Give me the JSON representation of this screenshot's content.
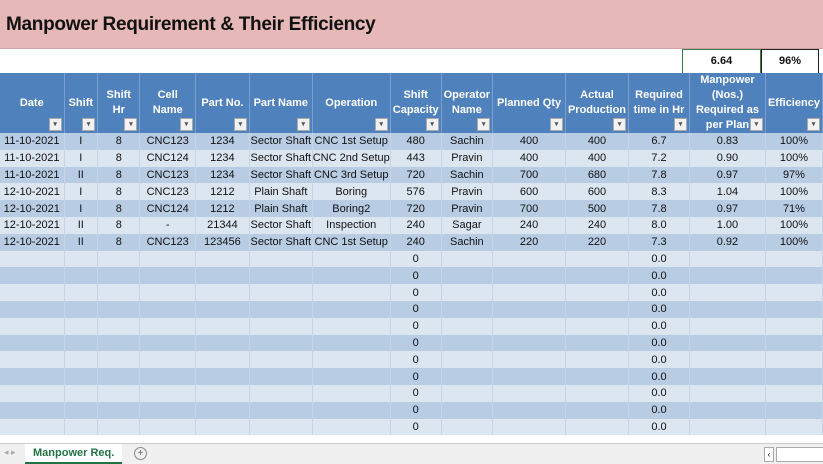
{
  "title": "Manpower Requirement & Their Efficiency",
  "totals": {
    "manpower": "6.64",
    "efficiency": "96%"
  },
  "columns": [
    "Date",
    "Shift",
    "Shift Hr",
    "Cell Name",
    "Part No.",
    "Part Name",
    "Operation",
    "Shift Capacity",
    "Operator Name",
    "Planned Qty",
    "Actual Production",
    "Required time in Hr",
    "Manpower (Nos.) Required as per Plan",
    "Efficiency"
  ],
  "rows": [
    [
      "11-10-2021",
      "I",
      "8",
      "CNC123",
      "1234",
      "Sector Shaft",
      "CNC 1st Setup",
      "480",
      "Sachin",
      "400",
      "400",
      "6.7",
      "0.83",
      "100%"
    ],
    [
      "11-10-2021",
      "I",
      "8",
      "CNC124",
      "1234",
      "Sector Shaft",
      "CNC 2nd Setup",
      "443",
      "Pravin",
      "400",
      "400",
      "7.2",
      "0.90",
      "100%"
    ],
    [
      "11-10-2021",
      "II",
      "8",
      "CNC123",
      "1234",
      "Sector Shaft",
      "CNC 3rd Setup",
      "720",
      "Sachin",
      "700",
      "680",
      "7.8",
      "0.97",
      "97%"
    ],
    [
      "12-10-2021",
      "I",
      "8",
      "CNC123",
      "1212",
      "Plain Shaft",
      "Boring",
      "576",
      "Pravin",
      "600",
      "600",
      "8.3",
      "1.04",
      "100%"
    ],
    [
      "12-10-2021",
      "I",
      "8",
      "CNC124",
      "1212",
      "Plain Shaft",
      "Boring2",
      "720",
      "Pravin",
      "700",
      "500",
      "7.8",
      "0.97",
      "71%"
    ],
    [
      "12-10-2021",
      "II",
      "8",
      "-",
      "21344",
      "Sector Shaft",
      "Inspection",
      "240",
      "Sagar",
      "240",
      "240",
      "8.0",
      "1.00",
      "100%"
    ],
    [
      "12-10-2021",
      "II",
      "8",
      "CNC123",
      "123456",
      "Sector Shaft",
      "CNC 1st Setup",
      "240",
      "Sachin",
      "220",
      "220",
      "7.3",
      "0.92",
      "100%"
    ],
    [
      "",
      "",
      "",
      "",
      "",
      "",
      "",
      "0",
      "",
      "",
      "",
      "0.0",
      "",
      ""
    ],
    [
      "",
      "",
      "",
      "",
      "",
      "",
      "",
      "0",
      "",
      "",
      "",
      "0.0",
      "",
      ""
    ],
    [
      "",
      "",
      "",
      "",
      "",
      "",
      "",
      "0",
      "",
      "",
      "",
      "0.0",
      "",
      ""
    ],
    [
      "",
      "",
      "",
      "",
      "",
      "",
      "",
      "0",
      "",
      "",
      "",
      "0.0",
      "",
      ""
    ],
    [
      "",
      "",
      "",
      "",
      "",
      "",
      "",
      "0",
      "",
      "",
      "",
      "0.0",
      "",
      ""
    ],
    [
      "",
      "",
      "",
      "",
      "",
      "",
      "",
      "0",
      "",
      "",
      "",
      "0.0",
      "",
      ""
    ],
    [
      "",
      "",
      "",
      "",
      "",
      "",
      "",
      "0",
      "",
      "",
      "",
      "0.0",
      "",
      ""
    ],
    [
      "",
      "",
      "",
      "",
      "",
      "",
      "",
      "0",
      "",
      "",
      "",
      "0.0",
      "",
      ""
    ],
    [
      "",
      "",
      "",
      "",
      "",
      "",
      "",
      "0",
      "",
      "",
      "",
      "0.0",
      "",
      ""
    ],
    [
      "",
      "",
      "",
      "",
      "",
      "",
      "",
      "0",
      "",
      "",
      "",
      "0.0",
      "",
      ""
    ],
    [
      "",
      "",
      "",
      "",
      "",
      "",
      "",
      "0",
      "",
      "",
      "",
      "0.0",
      "",
      ""
    ]
  ],
  "sheet_tab": "Manpower Req.",
  "add_sheet": "+",
  "colors": {
    "header": "#4f81bd",
    "row_dark": "#b8cce4",
    "row_light": "#dce6f1",
    "title_band": "#e6b8b7",
    "tab_accent": "#217346"
  }
}
